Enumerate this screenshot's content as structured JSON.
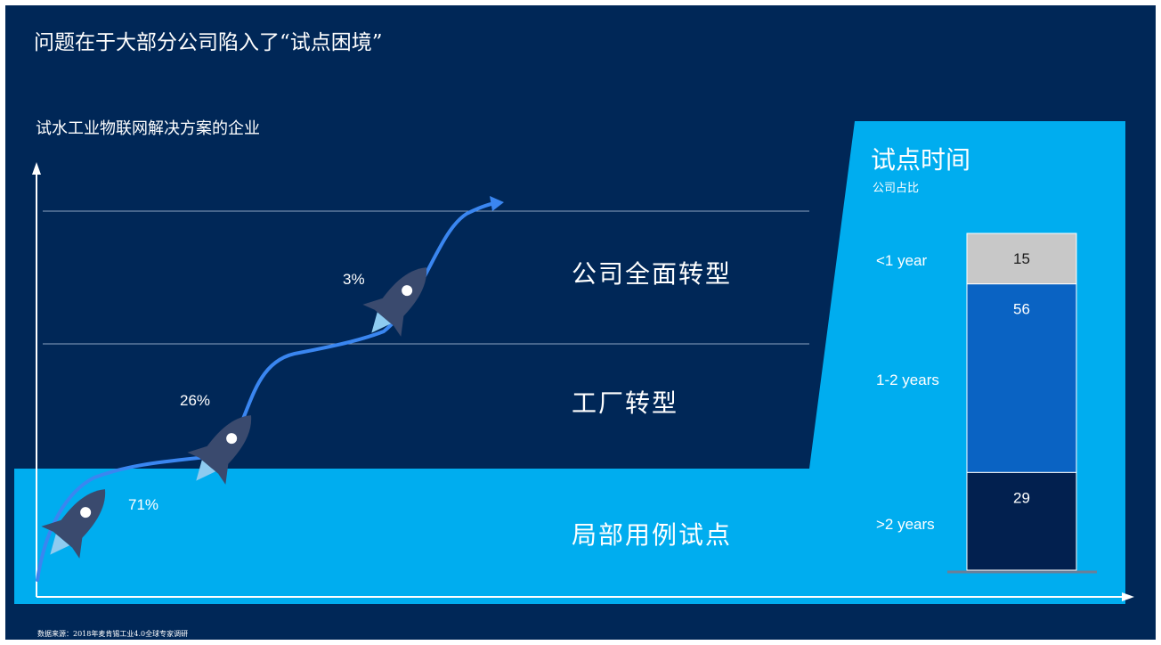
{
  "slide": {
    "title": "问题在于大部分公司陷入了“试点困境”",
    "subtitle": "试水工业物联网解决方案的企业",
    "source": "数据来源：2018年麦肯锡工业4.0全球专家调研"
  },
  "stages": [
    {
      "label": "公司全面转型",
      "percent": "3%"
    },
    {
      "label": "工厂转型",
      "percent": "26%"
    },
    {
      "label": "局部用例试点",
      "percent": "71%"
    }
  ],
  "chart_data": {
    "type": "bar",
    "title": "试点时间",
    "subtitle": "公司占比",
    "categories": [
      "<1 year",
      "1-2 years",
      ">2 years"
    ],
    "values": [
      15,
      56,
      29
    ],
    "stacked": true,
    "colors": [
      "#c8c8c8",
      "#0a63c3",
      "#02204f"
    ]
  },
  "colors": {
    "background": "#002757",
    "accent": "#00adef",
    "curve": "#3a86f0",
    "rocket": "#3a4a6e"
  },
  "icons": [
    "rocket-icon",
    "rocket-icon",
    "rocket-icon"
  ]
}
